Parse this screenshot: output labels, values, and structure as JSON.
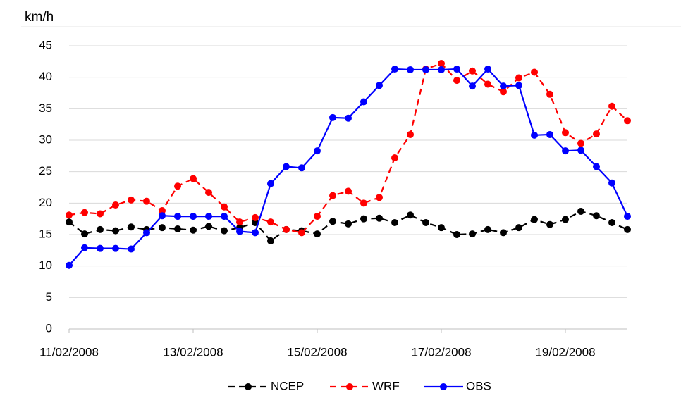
{
  "chart_data": {
    "type": "line",
    "y_label": "km/h",
    "categories": [
      "11/02/2008",
      null,
      null,
      null,
      null,
      null,
      null,
      null,
      "13/02/2008",
      null,
      null,
      null,
      null,
      null,
      null,
      null,
      "15/02/2008",
      null,
      null,
      null,
      null,
      null,
      null,
      null,
      "17/02/2008",
      null,
      null,
      null,
      null,
      null,
      null,
      null,
      "19/02/2008",
      null,
      null,
      null,
      null
    ],
    "series": [
      {
        "name": "NCEP",
        "color": "#000000",
        "line_style": "dashed",
        "values": [
          17.0,
          15.1,
          15.8,
          15.6,
          16.2,
          15.8,
          16.1,
          15.9,
          15.7,
          16.3,
          15.6,
          16.1,
          16.9,
          14.0,
          15.8,
          15.6,
          15.1,
          17.1,
          16.7,
          17.5,
          17.6,
          16.9,
          18.1,
          16.9,
          16.1,
          15.0,
          15.1,
          15.8,
          15.3,
          16.1,
          17.4,
          16.6,
          17.4,
          18.7,
          18.0,
          16.9,
          15.8
        ]
      },
      {
        "name": "WRF",
        "color": "#ff0000",
        "line_style": "dashed",
        "values": [
          18.1,
          18.5,
          18.3,
          19.7,
          20.5,
          20.3,
          18.8,
          22.7,
          23.9,
          21.7,
          19.4,
          17.0,
          17.7,
          17.0,
          15.8,
          15.3,
          17.9,
          21.2,
          21.9,
          20.0,
          20.9,
          27.2,
          30.9,
          41.3,
          42.2,
          39.5,
          41.0,
          38.9,
          37.7,
          39.9,
          40.8,
          37.3,
          31.2,
          29.5,
          31.0,
          35.4,
          33.1
        ]
      },
      {
        "name": "OBS",
        "color": "#0000ff",
        "line_style": "solid",
        "values": [
          10.1,
          12.9,
          12.8,
          12.8,
          12.7,
          15.3,
          18.0,
          17.9,
          17.9,
          17.9,
          17.9,
          15.5,
          15.3,
          23.1,
          25.8,
          25.6,
          28.3,
          33.6,
          33.5,
          36.1,
          38.7,
          41.3,
          41.2,
          41.2,
          41.2,
          41.3,
          38.6,
          41.3,
          38.6,
          38.7,
          30.8,
          30.9,
          28.3,
          28.4,
          25.8,
          23.2,
          17.9
        ]
      }
    ],
    "ylim": [
      0,
      45
    ],
    "yticks": [
      0,
      5,
      10,
      15,
      20,
      25,
      30,
      35,
      40,
      45
    ],
    "grid": true,
    "legend": "bottom"
  }
}
